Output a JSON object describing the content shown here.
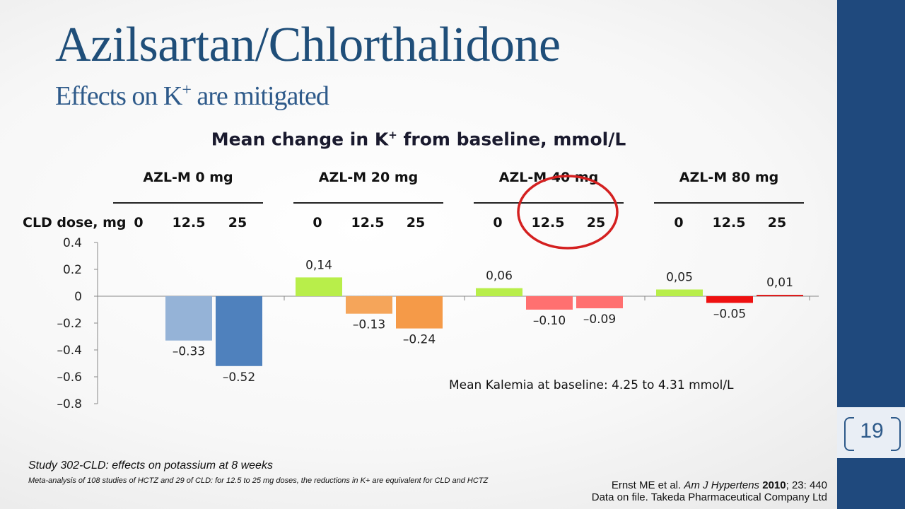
{
  "slide": {
    "title": "Azilsartan/Chlorthalidone",
    "subtitle_pre": "Effects on K",
    "subtitle_sup": "+",
    "subtitle_post": " are mitigated",
    "page_number": "19"
  },
  "chart_data": {
    "type": "bar",
    "title_pre": "Mean change in K",
    "title_sup": "+",
    "title_post": " from baseline, mmol/L",
    "x_axis_label": "CLD dose, mg",
    "groups": [
      "AZL-M 0 mg",
      "AZL-M 20 mg",
      "AZL-M 40 mg",
      "AZL-M 80 mg"
    ],
    "doses": [
      "0",
      "12.5",
      "25"
    ],
    "ylim": [
      -0.8,
      0.4
    ],
    "yticks": [
      "0.4",
      "0.2",
      "0",
      "–0.2",
      "–0.4",
      "–0.6",
      "–0.8"
    ],
    "ytick_values": [
      0.4,
      0.2,
      0,
      -0.2,
      -0.4,
      -0.6,
      -0.8
    ],
    "bars": [
      {
        "group": "AZL-M 0 mg",
        "dose": "0",
        "value": null,
        "label": "",
        "color": ""
      },
      {
        "group": "AZL-M 0 mg",
        "dose": "12.5",
        "value": -0.33,
        "label": "–0.33",
        "color": "#95b3d7"
      },
      {
        "group": "AZL-M 0 mg",
        "dose": "25",
        "value": -0.52,
        "label": "–0.52",
        "color": "#4f81bd"
      },
      {
        "group": "AZL-M 20 mg",
        "dose": "0",
        "value": 0.14,
        "label": "0,14",
        "color": "#b8ee4a"
      },
      {
        "group": "AZL-M 20 mg",
        "dose": "12.5",
        "value": -0.13,
        "label": "–0.13",
        "color": "#f5a55a"
      },
      {
        "group": "AZL-M 20 mg",
        "dose": "25",
        "value": -0.24,
        "label": "–0.24",
        "color": "#f59a48"
      },
      {
        "group": "AZL-M 40 mg",
        "dose": "0",
        "value": 0.06,
        "label": "0,06",
        "color": "#b8ee4a"
      },
      {
        "group": "AZL-M 40 mg",
        "dose": "12.5",
        "value": -0.1,
        "label": "–0.10",
        "color": "#ff7070"
      },
      {
        "group": "AZL-M 40 mg",
        "dose": "25",
        "value": -0.09,
        "label": "–0.09",
        "color": "#ff7070"
      },
      {
        "group": "AZL-M 80 mg",
        "dose": "0",
        "value": 0.05,
        "label": "0,05",
        "color": "#b8ee4a"
      },
      {
        "group": "AZL-M 80 mg",
        "dose": "12.5",
        "value": -0.05,
        "label": "–0.05",
        "color": "#ee1111"
      },
      {
        "group": "AZL-M 80 mg",
        "dose": "25",
        "value": 0.01,
        "label": "0,01",
        "color": "#dd1111"
      }
    ],
    "annotation": "Mean Kalemia at baseline: 4.25 to 4.31 mmol/L",
    "highlight": {
      "group": "AZL-M 40 mg",
      "doses": [
        "12.5",
        "25"
      ],
      "color": "#d42020"
    }
  },
  "footnotes": {
    "study": "Study 302-CLD: effects on potassium at 8 weeks",
    "meta": "Meta-analysis of 108 studies of HCTZ and 29 of CLD: for 12.5 to 25 mg doses, the reductions in K+ are equivalent for CLD and HCTZ",
    "ref_author": "Ernst ME et al. ",
    "ref_journal": "Am J Hypertens",
    "ref_year": "2010",
    "ref_rest": "; 23: 440",
    "ref_data": "Data on file. Takeda Pharmaceutical Company Ltd"
  }
}
